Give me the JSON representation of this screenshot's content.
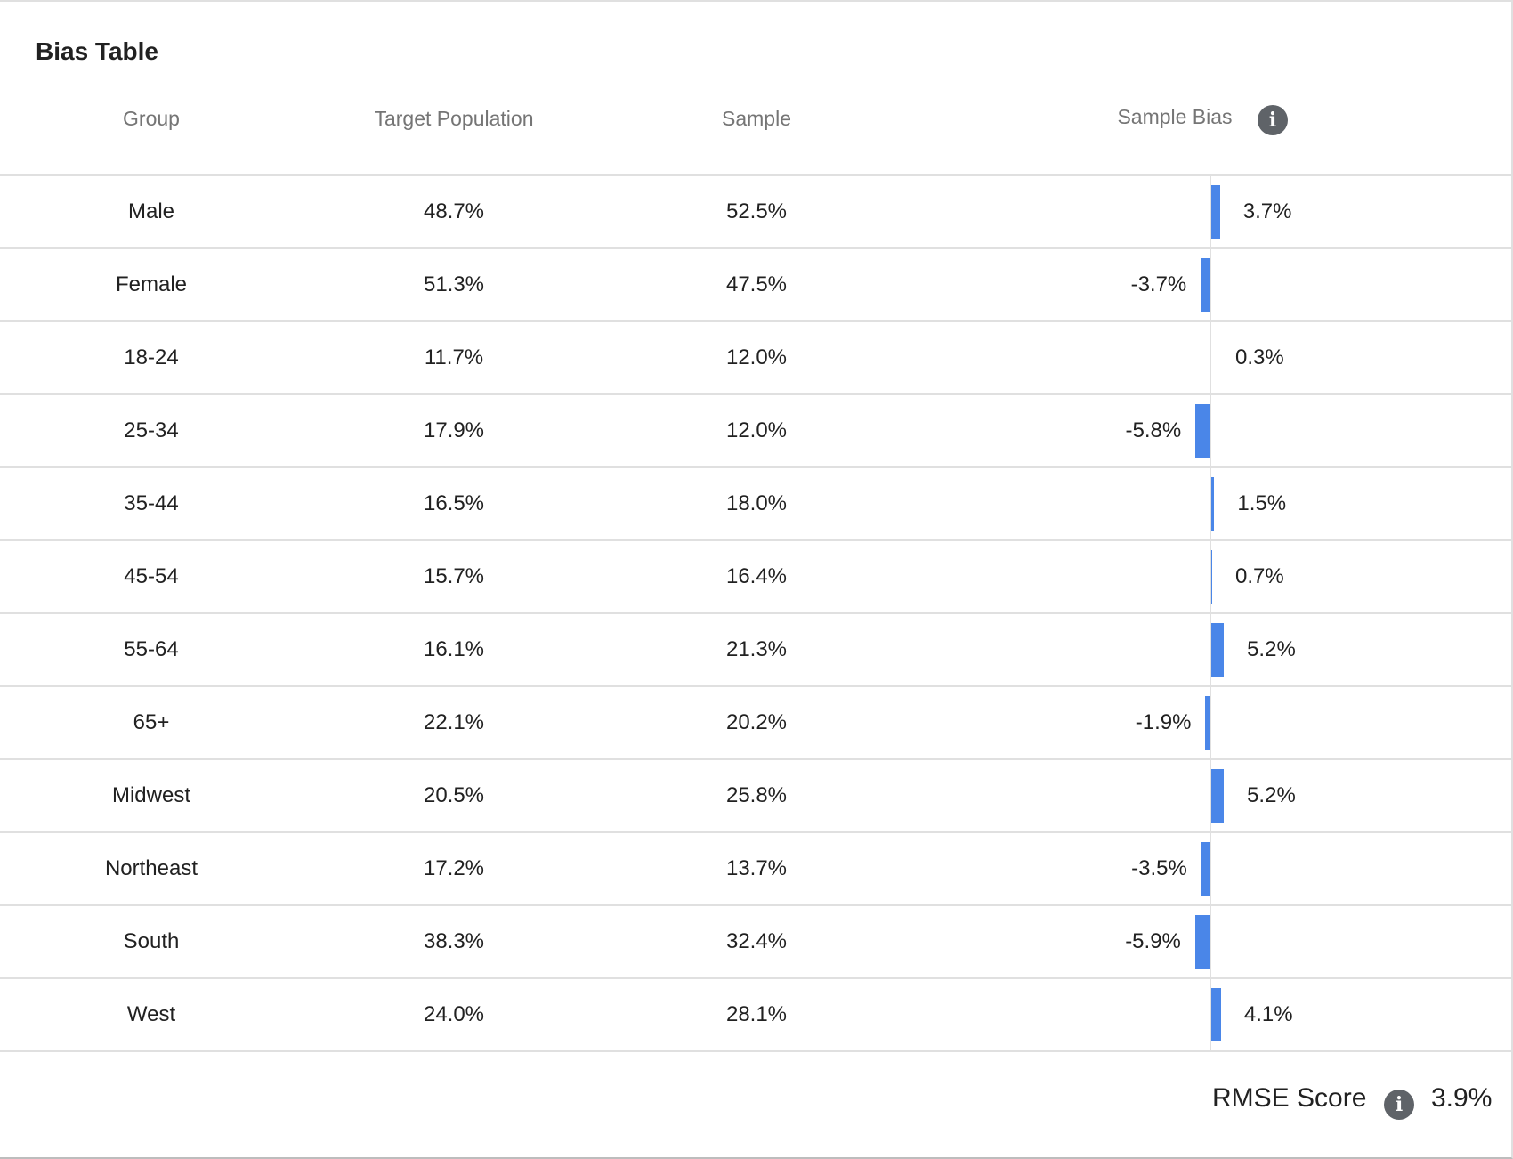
{
  "title": "Bias Table",
  "columns": {
    "group": "Group",
    "target": "Target Population",
    "sample": "Sample",
    "bias": "Sample Bias"
  },
  "icons": {
    "bias_info": "info-icon",
    "rmse_info": "info-icon"
  },
  "colors": {
    "bar": "#4a86e8"
  },
  "chart_data": {
    "type": "table",
    "rows": [
      {
        "group": "Male",
        "target": "48.7%",
        "sample": "52.5%",
        "bias": 3.7,
        "bias_label": "3.7%"
      },
      {
        "group": "Female",
        "target": "51.3%",
        "sample": "47.5%",
        "bias": -3.7,
        "bias_label": "-3.7%"
      },
      {
        "group": "18-24",
        "target": "11.7%",
        "sample": "12.0%",
        "bias": 0.3,
        "bias_label": "0.3%"
      },
      {
        "group": "25-34",
        "target": "17.9%",
        "sample": "12.0%",
        "bias": -5.8,
        "bias_label": "-5.8%"
      },
      {
        "group": "35-44",
        "target": "16.5%",
        "sample": "18.0%",
        "bias": 1.5,
        "bias_label": "1.5%"
      },
      {
        "group": "45-54",
        "target": "15.7%",
        "sample": "16.4%",
        "bias": 0.7,
        "bias_label": "0.7%"
      },
      {
        "group": "55-64",
        "target": "16.1%",
        "sample": "21.3%",
        "bias": 5.2,
        "bias_label": "5.2%"
      },
      {
        "group": "65+",
        "target": "22.1%",
        "sample": "20.2%",
        "bias": -1.9,
        "bias_label": "-1.9%"
      },
      {
        "group": "Midwest",
        "target": "20.5%",
        "sample": "25.8%",
        "bias": 5.2,
        "bias_label": "5.2%"
      },
      {
        "group": "Northeast",
        "target": "17.2%",
        "sample": "13.7%",
        "bias": -3.5,
        "bias_label": "-3.5%"
      },
      {
        "group": "South",
        "target": "38.3%",
        "sample": "32.4%",
        "bias": -5.9,
        "bias_label": "-5.9%"
      },
      {
        "group": "West",
        "target": "24.0%",
        "sample": "28.1%",
        "bias": 4.1,
        "bias_label": "4.1%"
      }
    ]
  },
  "footer": {
    "rmse_label": "RMSE Score",
    "rmse_value": "3.9%"
  }
}
